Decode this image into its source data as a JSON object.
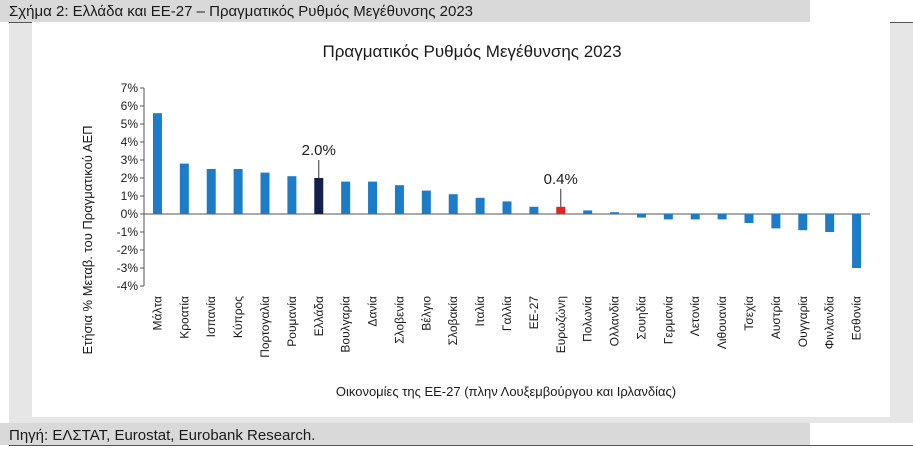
{
  "figure": {
    "caption": "Σχήμα 2: Ελλάδα και ΕΕ-27 – Πραγματικός Ρυθμός Μεγέθυνσης 2023",
    "source": "Πηγή: ΕΛΣΤΑΤ, Eurostat, Eurobank Research."
  },
  "colors": {
    "default_bar": "#1d7cc8",
    "greece_bar": "#12204a",
    "eurozone_bar": "#e8201f",
    "grid_axis": "#555555"
  },
  "chart_data": {
    "type": "bar",
    "title": "Πραγματικός Ρυθμός Μεγέθυνσης 2023",
    "xlabel": "Οικονομίες της ΕΕ-27 (πλην Λουξεμβούργου και Ιρλανδίας)",
    "ylabel": "Ετήσια % Μεταβ. του Πραγματικού ΑΕΠ",
    "ylim": [
      -4,
      7
    ],
    "yticks": [
      "7%",
      "6%",
      "5%",
      "4%",
      "3%",
      "2%",
      "1%",
      "0%",
      "-1%",
      "-2%",
      "-3%",
      "-4%"
    ],
    "grid": false,
    "categories": [
      "Μάλτα",
      "Κροατία",
      "Ισπανία",
      "Κύπρος",
      "Πορτογαλία",
      "Ρουμανία",
      "Ελλάδα",
      "Βουλγαρία",
      "Δανία",
      "Σλοβενία",
      "Βέλγιο",
      "Σλοβακία",
      "Ιταλία",
      "Γαλλία",
      "ΕΕ-27",
      "Ευρωζώνη",
      "Πολωνία",
      "Ολλανδία",
      "Σουηδία",
      "Γερμανία",
      "Λετονία",
      "Λιθουανία",
      "Τσεχία",
      "Αυστρία",
      "Ουγγαρία",
      "Φινλανδία",
      "Εσθονία"
    ],
    "values": [
      5.6,
      2.8,
      2.5,
      2.5,
      2.3,
      2.1,
      2.0,
      1.8,
      1.8,
      1.6,
      1.3,
      1.1,
      0.9,
      0.7,
      0.4,
      0.4,
      0.2,
      0.1,
      -0.2,
      -0.3,
      -0.3,
      -0.3,
      -0.5,
      -0.8,
      -0.9,
      -1.0,
      -3.0
    ],
    "highlight": {
      "Ελλάδα": "greece_bar",
      "Ευρωζώνη": "eurozone_bar"
    },
    "annotations": [
      {
        "category": "Ελλάδα",
        "text": "2.0%"
      },
      {
        "category": "Ευρωζώνη",
        "text": "0.4%"
      }
    ]
  }
}
